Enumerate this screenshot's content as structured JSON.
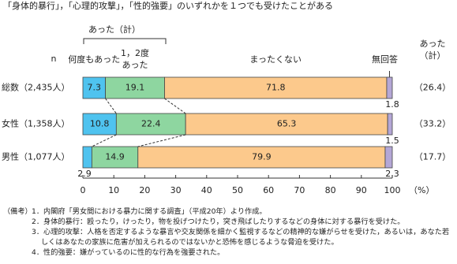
{
  "chart_data": {
    "type": "stacked-bar-horizontal",
    "title": "「身体的暴行」，「心理的攻撃」，「性的強要」のいずれかを１つでも受けたことがある",
    "group_label": "あった（計）",
    "n_label": "n",
    "total_header": "あった（計）",
    "categories": [
      "総数（2,435人）",
      "女性（1,358人）",
      "男性（1,077人）"
    ],
    "series": [
      {
        "name": "何度もあった",
        "color": "#4fc3ef",
        "values": [
          7.3,
          10.8,
          2.9
        ]
      },
      {
        "name": "1，2度あった",
        "color": "#8ed6a0",
        "values": [
          19.1,
          22.4,
          14.9
        ]
      },
      {
        "name": "まったくない",
        "color": "#fcc98c",
        "values": [
          71.8,
          65.3,
          79.9
        ]
      },
      {
        "name": "無回答",
        "color": "#b4a7d6",
        "values": [
          1.8,
          1.5,
          2.3
        ]
      }
    ],
    "totals": {
      "values": [
        26.4,
        33.2,
        17.7
      ],
      "value_labels": [
        "（26.4）",
        "（33.2）",
        "（17.7）"
      ]
    },
    "xlim": [
      0,
      100
    ],
    "xticks": [
      0,
      10,
      20,
      30,
      40,
      50,
      60,
      70,
      80,
      90,
      100
    ],
    "x_unit": "（%）"
  },
  "notes": {
    "label": "（備考）",
    "items": [
      "1．内閣府「男女間における暴力に関する調査」（平成20年）より作成。",
      "2．身体的暴行：殴ったり，けったり，物を投げつけたり，突き飛ばしたりするなどの身体に対する暴行を受けた。",
      "3．心理的攻撃：人格を否定するような暴言や交友関係を細かく監視するなどの精神的な嫌がらせを受けた，あるいは，あなた若しくはあなたの家族に危害が加えられるのではないかと恐怖を感じるような脅迫を受けた。",
      "4．性的強要：嫌がっているのに性的な行為を強要された。"
    ]
  }
}
